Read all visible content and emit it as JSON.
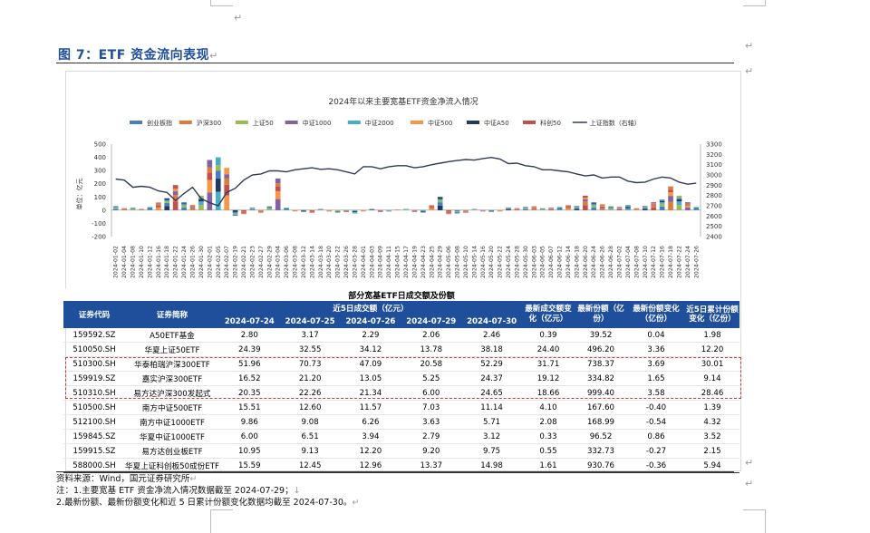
{
  "page": {
    "heading": "图 7：ETF 资金流向表现",
    "para_mark": "↵"
  },
  "chart_data": {
    "type": "bar",
    "title": "2024年以来主要宽基ETF资金净流入情况",
    "ylabel_left": "单位：亿元",
    "ylabel_right": "",
    "ylim": [
      -200,
      500
    ],
    "y2lim": [
      2400,
      3300
    ],
    "yticks": [
      -200,
      -100,
      0,
      100,
      200,
      300,
      400,
      500
    ],
    "y2ticks": [
      2400,
      2500,
      2600,
      2700,
      2800,
      2900,
      3000,
      3100,
      3200,
      3300
    ],
    "legend": [
      {
        "name": "创业板指",
        "color": "#4a7ebb"
      },
      {
        "name": "沪深300",
        "color": "#e07b39"
      },
      {
        "name": "上证50",
        "color": "#9bbb59"
      },
      {
        "name": "中证1000",
        "color": "#8064a2"
      },
      {
        "name": "中证2000",
        "color": "#4bacc6"
      },
      {
        "name": "中证500",
        "color": "#f79646"
      },
      {
        "name": "中证A50",
        "color": "#1f3864"
      },
      {
        "name": "科创50",
        "color": "#c0504d"
      },
      {
        "name": "上证指数（右轴）",
        "color": "#2f3b59"
      }
    ],
    "dates": [
      "2024-01-02",
      "2024-01-04",
      "2024-01-08",
      "2024-01-10",
      "2024-01-12",
      "2024-01-16",
      "2024-01-18",
      "2024-01-22",
      "2024-01-24",
      "2024-01-26",
      "2024-01-30",
      "2024-02-01",
      "2024-02-05",
      "2024-02-07",
      "2024-02-19",
      "2024-02-21",
      "2024-02-23",
      "2024-02-27",
      "2024-02-29",
      "2024-03-04",
      "2024-03-06",
      "2024-03-08",
      "2024-03-12",
      "2024-03-14",
      "2024-03-18",
      "2024-03-20",
      "2024-03-22",
      "2024-03-26",
      "2024-03-28",
      "2024-04-01",
      "2024-04-03",
      "2024-04-09",
      "2024-04-11",
      "2024-04-15",
      "2024-04-17",
      "2024-04-19",
      "2024-04-23",
      "2024-04-25",
      "2024-04-29",
      "2024-05-06",
      "2024-05-08",
      "2024-05-10",
      "2024-05-14",
      "2024-05-16",
      "2024-05-20",
      "2024-05-22",
      "2024-05-24",
      "2024-05-28",
      "2024-05-30",
      "2024-06-03",
      "2024-06-05",
      "2024-06-07",
      "2024-06-12",
      "2024-06-14",
      "2024-06-18",
      "2024-06-20",
      "2024-06-24",
      "2024-06-26",
      "2024-06-28",
      "2024-07-02",
      "2024-07-04",
      "2024-07-08",
      "2024-07-10",
      "2024-07-12",
      "2024-07-16",
      "2024-07-18",
      "2024-07-22",
      "2024-07-24",
      "2024-07-26"
    ],
    "net_inflow_total": [
      30,
      15,
      20,
      10,
      25,
      60,
      90,
      190,
      60,
      40,
      110,
      380,
      400,
      320,
      -40,
      -30,
      20,
      -20,
      30,
      240,
      20,
      -10,
      -15,
      -20,
      10,
      -10,
      -20,
      -15,
      -25,
      -10,
      10,
      -15,
      -10,
      5,
      10,
      -15,
      -20,
      40,
      100,
      -30,
      -25,
      -20,
      10,
      -10,
      -15,
      -10,
      20,
      15,
      25,
      30,
      15,
      20,
      25,
      40,
      30,
      110,
      60,
      45,
      30,
      25,
      40,
      15,
      30,
      60,
      80,
      180,
      110,
      60,
      25
    ],
    "index_right": [
      2960,
      2950,
      2880,
      2890,
      2880,
      2845,
      2830,
      2750,
      2820,
      2880,
      2770,
      2730,
      2700,
      2830,
      2870,
      2950,
      3000,
      3010,
      3040,
      3040,
      3030,
      3050,
      3060,
      3070,
      3055,
      3060,
      3050,
      3030,
      3010,
      3080,
      3080,
      3060,
      3080,
      3090,
      3090,
      3070,
      3080,
      3100,
      3115,
      3130,
      3140,
      3150,
      3145,
      3160,
      3170,
      3155,
      3110,
      3115,
      3090,
      3080,
      3050,
      3050,
      3040,
      3030,
      3010,
      2990,
      3000,
      2970,
      2980,
      2980,
      2940,
      2925,
      2930,
      2960,
      2980,
      2970,
      2930,
      2910,
      2920
    ]
  },
  "table": {
    "title": "部分宽基ETF日成交额及份额",
    "headers": {
      "code": "证券代码",
      "name": "证券简称",
      "turnover_group": "近5日成交额（亿元）",
      "dates": [
        "2024-07-24",
        "2024-07-25",
        "2024-07-26",
        "2024-07-29",
        "2024-07-30"
      ],
      "turnover_change": "最新成交额变化（亿元）",
      "latest_shares": "最新份额（亿份）",
      "share_change": "最新份额变化（亿份）",
      "cum_change": "近5日累计份额变化（亿份）"
    },
    "rows": [
      {
        "code": "159592.SZ",
        "name": "A50ETF基金",
        "d1": "2.80",
        "d2": "3.17",
        "d3": "2.29",
        "d4": "2.06",
        "d5": "2.46",
        "tc": "0.39",
        "shares": "39.52",
        "sc": "0.04",
        "cum": "1.98"
      },
      {
        "code": "510050.SH",
        "name": "华夏上证50ETF",
        "d1": "24.39",
        "d2": "32.55",
        "d3": "34.12",
        "d4": "13.78",
        "d5": "38.18",
        "tc": "24.40",
        "shares": "496.20",
        "sc": "3.36",
        "cum": "12.20"
      },
      {
        "code": "510300.SH",
        "name": "华泰柏瑞沪深300ETF",
        "d1": "51.96",
        "d2": "70.73",
        "d3": "47.09",
        "d4": "20.58",
        "d5": "52.29",
        "tc": "31.71",
        "shares": "738.37",
        "sc": "3.69",
        "cum": "30.01"
      },
      {
        "code": "159919.SZ",
        "name": "嘉实沪深300ETF",
        "d1": "16.52",
        "d2": "21.20",
        "d3": "13.05",
        "d4": "5.25",
        "d5": "24.37",
        "tc": "19.12",
        "shares": "334.82",
        "sc": "1.65",
        "cum": "9.14"
      },
      {
        "code": "510310.SH",
        "name": "易方达沪深300发起式",
        "d1": "20.35",
        "d2": "22.26",
        "d3": "21.34",
        "d4": "6.00",
        "d5": "24.65",
        "tc": "18.66",
        "shares": "999.40",
        "sc": "3.58",
        "cum": "28.46"
      },
      {
        "code": "510500.SH",
        "name": "南方中证500ETF",
        "d1": "15.51",
        "d2": "12.60",
        "d3": "11.57",
        "d4": "7.03",
        "d5": "11.14",
        "tc": "4.10",
        "shares": "167.60",
        "sc": "-0.40",
        "cum": "1.39"
      },
      {
        "code": "512100.SH",
        "name": "南方中证1000ETF",
        "d1": "9.86",
        "d2": "9.08",
        "d3": "6.26",
        "d4": "3.63",
        "d5": "5.71",
        "tc": "2.08",
        "shares": "168.99",
        "sc": "-0.54",
        "cum": "4.32"
      },
      {
        "code": "159845.SZ",
        "name": "华夏中证1000ETF",
        "d1": "6.00",
        "d2": "6.51",
        "d3": "3.94",
        "d4": "2.79",
        "d5": "3.12",
        "tc": "0.33",
        "shares": "96.52",
        "sc": "0.86",
        "cum": "3.52"
      },
      {
        "code": "159915.SZ",
        "name": "易方达创业板ETF",
        "d1": "10.95",
        "d2": "9.13",
        "d3": "12.20",
        "d4": "9.20",
        "d5": "9.75",
        "tc": "0.55",
        "shares": "332.73",
        "sc": "-0.27",
        "cum": "2.15"
      },
      {
        "code": "588000.SH",
        "name": "华夏上证科创板50成份ETF",
        "d1": "15.59",
        "d2": "12.45",
        "d3": "12.96",
        "d4": "13.37",
        "d5": "14.98",
        "tc": "1.61",
        "shares": "930.76",
        "sc": "-0.36",
        "cum": "5.94"
      }
    ]
  },
  "notes": {
    "source": "资料来源：Wind，国元证券研究所",
    "note1": "注：1.主要宽基 ETF 资金净流入情况数据截至 2024-07-29；",
    "note2": "2.最新份额、最新份额变化和近 5 日累计份额变化数据均截至 2024-07-30。"
  }
}
